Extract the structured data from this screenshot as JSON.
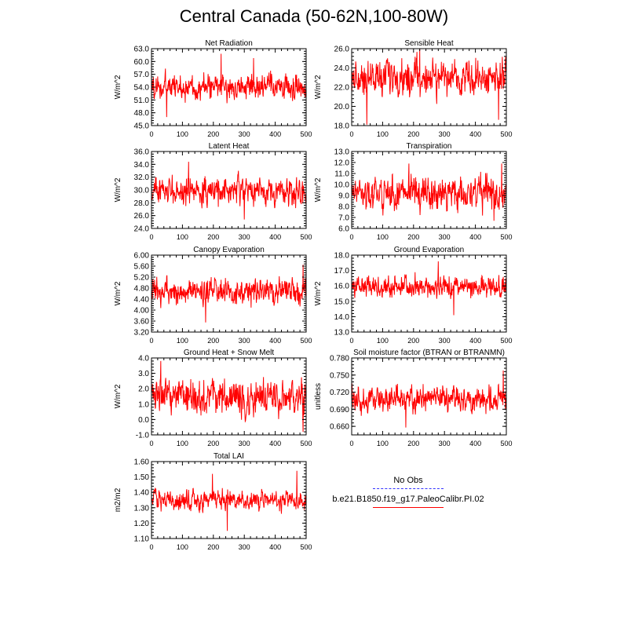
{
  "figure_title": "Central Canada (50-62N,100-80W)",
  "legend": {
    "items": [
      {
        "label": "No Obs",
        "color": "#3333ff",
        "style": "dashed"
      },
      {
        "label": "b.e21.B1850.f19_g17.PaleoCalibr.PI.02",
        "color": "#ff0000",
        "style": "solid"
      }
    ]
  },
  "chart_data": [
    {
      "type": "line",
      "title": "Net Radiation",
      "xlabel": "",
      "ylabel": "W/m^2",
      "xlim": [
        0,
        500
      ],
      "ylim": [
        45.0,
        63.0
      ],
      "xticks": [
        0,
        100,
        200,
        300,
        400,
        500
      ],
      "yticks": [
        "45.0",
        "48.0",
        "51.0",
        "54.0",
        "57.0",
        "60.0",
        "63.0"
      ],
      "series": [
        {
          "color": "#ff0000",
          "mean": 54.0,
          "amplitude": 2.3,
          "extremes": [
            {
              "x": 49,
              "y": 47.0
            },
            {
              "x": 225,
              "y": 61.8
            },
            {
              "x": 330,
              "y": 60.8
            }
          ]
        }
      ]
    },
    {
      "type": "line",
      "title": "Sensible Heat",
      "xlabel": "",
      "ylabel": "W/m^2",
      "xlim": [
        0,
        500
      ],
      "ylim": [
        18.0,
        26.0
      ],
      "xticks": [
        0,
        100,
        200,
        300,
        400,
        500
      ],
      "yticks": [
        "18.0",
        "20.0",
        "22.0",
        "24.0",
        "26.0"
      ],
      "series": [
        {
          "color": "#ff0000",
          "mean": 23.0,
          "amplitude": 1.4,
          "extremes": [
            {
              "x": 49,
              "y": 18.1
            },
            {
              "x": 475,
              "y": 18.6
            },
            {
              "x": 220,
              "y": 26.0
            }
          ]
        }
      ]
    },
    {
      "type": "line",
      "title": "Latent Heat",
      "xlabel": "",
      "ylabel": "W/m^2",
      "xlim": [
        0,
        500
      ],
      "ylim": [
        24.0,
        36.0
      ],
      "xticks": [
        0,
        100,
        200,
        300,
        400,
        500
      ],
      "yticks": [
        "24.0",
        "26.0",
        "28.0",
        "30.0",
        "32.0",
        "34.0",
        "36.0"
      ],
      "series": [
        {
          "color": "#ff0000",
          "mean": 29.8,
          "amplitude": 1.6,
          "extremes": [
            {
              "x": 120,
              "y": 34.4
            },
            {
              "x": 300,
              "y": 25.4
            }
          ]
        }
      ]
    },
    {
      "type": "line",
      "title": "Transpiration",
      "xlabel": "",
      "ylabel": "W/m^2",
      "xlim": [
        0,
        500
      ],
      "ylim": [
        6.0,
        13.0
      ],
      "xticks": [
        0,
        100,
        200,
        300,
        400,
        500
      ],
      "yticks": [
        "6.0",
        "7.0",
        "8.0",
        "9.0",
        "10.0",
        "11.0",
        "12.0",
        "13.0"
      ],
      "series": [
        {
          "color": "#ff0000",
          "mean": 9.2,
          "amplitude": 1.1,
          "extremes": [
            {
              "x": 185,
              "y": 11.9
            },
            {
              "x": 460,
              "y": 6.7
            },
            {
              "x": 485,
              "y": 11.9
            }
          ]
        }
      ]
    },
    {
      "type": "line",
      "title": "Canopy Evaporation",
      "xlabel": "",
      "ylabel": "W/m^2",
      "xlim": [
        0,
        500
      ],
      "ylim": [
        3.2,
        6.0
      ],
      "xticks": [
        0,
        100,
        200,
        300,
        400,
        500
      ],
      "yticks": [
        "3.20",
        "3.60",
        "4.00",
        "4.40",
        "4.80",
        "5.20",
        "5.60",
        "6.00"
      ],
      "series": [
        {
          "color": "#ff0000",
          "mean": 4.65,
          "amplitude": 0.35,
          "extremes": [
            {
              "x": 175,
              "y": 3.55
            },
            {
              "x": 490,
              "y": 5.65
            }
          ]
        }
      ]
    },
    {
      "type": "line",
      "title": "Ground Evaporation",
      "xlabel": "",
      "ylabel": "W/m^2",
      "xlim": [
        0,
        500
      ],
      "ylim": [
        13.0,
        18.0
      ],
      "xticks": [
        0,
        100,
        200,
        300,
        400,
        500
      ],
      "yticks": [
        "13.0",
        "14.0",
        "15.0",
        "16.0",
        "17.0",
        "18.0"
      ],
      "series": [
        {
          "color": "#ff0000",
          "mean": 15.9,
          "amplitude": 0.55,
          "extremes": [
            {
              "x": 280,
              "y": 17.6
            },
            {
              "x": 330,
              "y": 14.1
            }
          ]
        }
      ]
    },
    {
      "type": "line",
      "title": "Ground Heat + Snow Melt",
      "xlabel": "",
      "ylabel": "W/m^2",
      "xlim": [
        0,
        500
      ],
      "ylim": [
        -1.0,
        4.0
      ],
      "xticks": [
        0,
        100,
        200,
        300,
        400,
        500
      ],
      "yticks": [
        "-1.0",
        "0.0",
        "1.0",
        "2.0",
        "3.0",
        "4.0"
      ],
      "series": [
        {
          "color": "#ff0000",
          "mean": 1.4,
          "amplitude": 0.85,
          "extremes": [
            {
              "x": 30,
              "y": 3.8
            },
            {
              "x": 490,
              "y": -0.8
            }
          ]
        }
      ]
    },
    {
      "type": "line",
      "title": "Soil moisture factor (BTRAN or BTRANMN)",
      "xlabel": "",
      "ylabel": "unitless",
      "xlim": [
        0,
        500
      ],
      "ylim": [
        0.645,
        0.78
      ],
      "xticks": [
        0,
        100,
        200,
        300,
        400,
        500
      ],
      "yticks": [
        "0.660",
        "0.690",
        "0.720",
        "0.750",
        "0.780"
      ],
      "series": [
        {
          "color": "#ff0000",
          "mean": 0.708,
          "amplitude": 0.017,
          "extremes": [
            {
              "x": 490,
              "y": 0.758
            },
            {
              "x": 175,
              "y": 0.658
            }
          ]
        }
      ]
    },
    {
      "type": "line",
      "title": "Total LAI",
      "xlabel": "",
      "ylabel": "m2/m2",
      "xlim": [
        0,
        500
      ],
      "ylim": [
        1.1,
        1.6
      ],
      "xticks": [
        0,
        100,
        200,
        300,
        400,
        500
      ],
      "yticks": [
        "1.10",
        "1.20",
        "1.30",
        "1.40",
        "1.50",
        "1.60"
      ],
      "series": [
        {
          "color": "#ff0000",
          "mean": 1.35,
          "amplitude": 0.05,
          "extremes": [
            {
              "x": 197,
              "y": 1.52
            },
            {
              "x": 470,
              "y": 1.54
            },
            {
              "x": 245,
              "y": 1.15
            }
          ]
        }
      ]
    }
  ]
}
